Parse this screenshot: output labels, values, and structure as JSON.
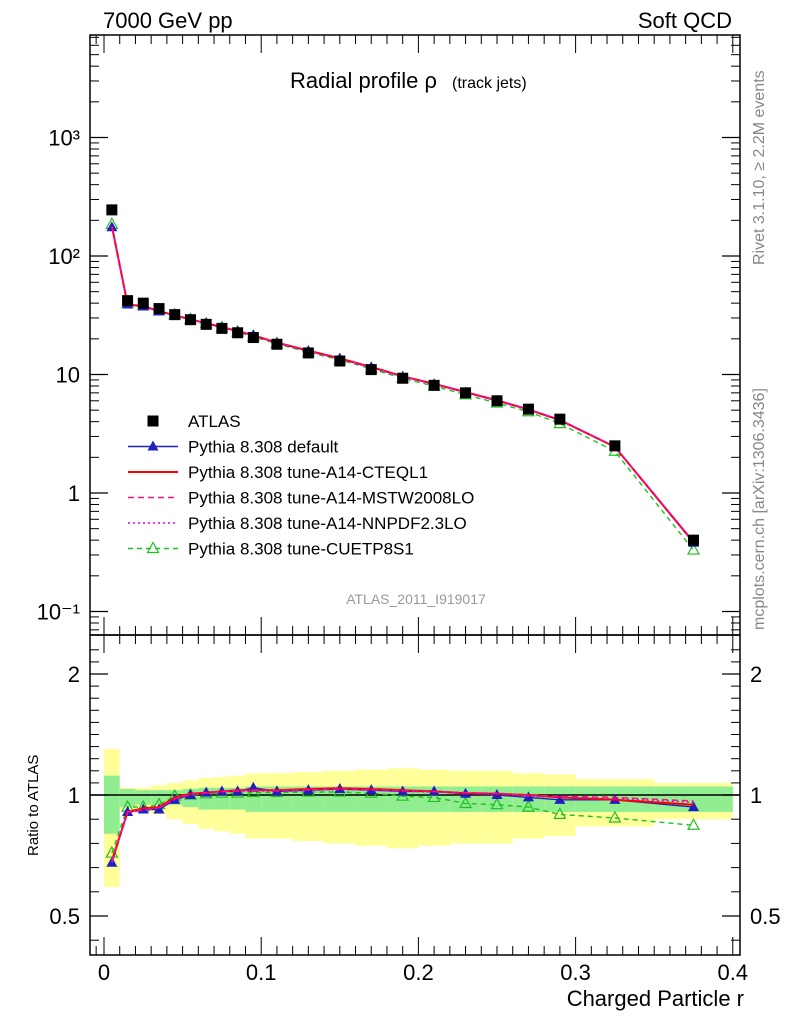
{
  "header": {
    "left": "7000 GeV pp",
    "right": "Soft QCD"
  },
  "side": {
    "rivet": "Rivet 3.1.10, ≥ 2.2M events",
    "mcplots": "mcplots.cern.ch [arXiv:1306.3436]"
  },
  "chart_data": [
    {
      "type": "scatter",
      "title_main": "Radial profile ρ",
      "title_sub": "(track jets)",
      "watermark": "ATLAS_2011_I919017",
      "xlim": [
        -0.01,
        0.4
      ],
      "ylim": [
        0.07,
        9000
      ],
      "yscale": "log",
      "ytick_labels": [
        "10⁻¹",
        "1",
        "10",
        "10²",
        "10³"
      ],
      "legend_position": "middle-left",
      "x": [
        0.005,
        0.015,
        0.025,
        0.035,
        0.045,
        0.055,
        0.065,
        0.075,
        0.085,
        0.095,
        0.11,
        0.13,
        0.15,
        0.17,
        0.19,
        0.21,
        0.23,
        0.25,
        0.27,
        0.29,
        0.325,
        0.375
      ],
      "series": [
        {
          "name": "ATLAS",
          "color": "#000000",
          "marker": "square",
          "values": [
            245,
            42,
            40,
            36,
            32,
            29,
            26.5,
            24.5,
            22.5,
            20.5,
            18,
            15.2,
            13,
            11,
            9.3,
            8.1,
            7,
            6,
            5.1,
            4.2,
            2.5,
            0.4
          ]
        },
        {
          "name": "Pythia 8.308 default",
          "color": "#2020c0",
          "marker": "triangle",
          "dash": "",
          "values": [
            175,
            39,
            37.5,
            34,
            31.5,
            29,
            27,
            25,
            23.2,
            21.5,
            18.5,
            15.8,
            13.6,
            11.5,
            9.6,
            8.3,
            7.05,
            6.0,
            5.05,
            4.1,
            2.45,
            0.38
          ]
        },
        {
          "name": "Pythia 8.308 tune-A14-CTEQL1",
          "color": "#ff0000",
          "marker": "",
          "dash": "",
          "values": [
            178,
            39,
            37.8,
            34.2,
            31.6,
            29.2,
            27.1,
            25.1,
            23.3,
            21.4,
            18.6,
            15.9,
            13.7,
            11.6,
            9.65,
            8.35,
            7.1,
            6.05,
            5.08,
            4.12,
            2.45,
            0.385
          ]
        },
        {
          "name": "Pythia 8.308 tune-A14-MSTW2008LO",
          "color": "#ff1080",
          "marker": "",
          "dash": "6,4",
          "values": [
            177,
            39,
            37.6,
            34.1,
            31.5,
            29.1,
            27.0,
            25.0,
            23.2,
            21.3,
            18.5,
            15.8,
            13.6,
            11.5,
            9.6,
            8.3,
            7.08,
            6.08,
            5.1,
            4.15,
            2.47,
            0.39
          ]
        },
        {
          "name": "Pythia 8.308 tune-A14-NNPDF2.3LO",
          "color": "#e000e0",
          "marker": "",
          "dash": "2,3",
          "values": [
            176,
            38.8,
            37.5,
            34.0,
            31.4,
            29.0,
            26.9,
            24.9,
            23.1,
            21.2,
            18.4,
            15.7,
            13.5,
            11.4,
            9.55,
            8.25,
            7.05,
            6.05,
            5.08,
            4.13,
            2.46,
            0.388
          ]
        },
        {
          "name": "Pythia 8.308 tune-CUETP8S1",
          "color": "#20c020",
          "marker": "triangle-open",
          "dash": "5,4",
          "values": [
            185,
            40,
            38,
            34.5,
            31.8,
            29.2,
            26.8,
            24.8,
            22.8,
            20.8,
            18.2,
            15.4,
            13.3,
            11.2,
            9.25,
            8.0,
            6.75,
            5.75,
            4.85,
            3.85,
            2.25,
            0.33
          ]
        }
      ]
    },
    {
      "type": "scatter",
      "ylabel": "Ratio to ATLAS",
      "xlabel": "Charged Particle r",
      "xlim": [
        -0.01,
        0.4
      ],
      "ylim": [
        0.35,
        2.3
      ],
      "ytick_labels": [
        "0.5",
        "1",
        "2"
      ],
      "xtick_labels": [
        "0",
        "0.1",
        "0.2",
        "0.3",
        "0.4"
      ],
      "bins": [
        [
          0.0,
          0.01
        ],
        [
          0.01,
          0.02
        ],
        [
          0.02,
          0.03
        ],
        [
          0.03,
          0.04
        ],
        [
          0.04,
          0.05
        ],
        [
          0.05,
          0.06
        ],
        [
          0.06,
          0.07
        ],
        [
          0.07,
          0.08
        ],
        [
          0.08,
          0.09
        ],
        [
          0.09,
          0.1
        ],
        [
          0.1,
          0.12
        ],
        [
          0.12,
          0.14
        ],
        [
          0.14,
          0.16
        ],
        [
          0.16,
          0.18
        ],
        [
          0.18,
          0.2
        ],
        [
          0.2,
          0.22
        ],
        [
          0.22,
          0.24
        ],
        [
          0.24,
          0.26
        ],
        [
          0.26,
          0.28
        ],
        [
          0.28,
          0.3
        ],
        [
          0.3,
          0.35
        ],
        [
          0.35,
          0.4
        ]
      ],
      "band_stat": [
        0.16,
        0.05,
        0.04,
        0.04,
        0.04,
        0.05,
        0.06,
        0.06,
        0.06,
        0.07,
        0.07,
        0.07,
        0.07,
        0.07,
        0.07,
        0.07,
        0.07,
        0.07,
        0.07,
        0.07,
        0.07,
        0.07
      ],
      "band_total": [
        0.38,
        0.06,
        0.06,
        0.08,
        0.1,
        0.12,
        0.14,
        0.15,
        0.16,
        0.18,
        0.18,
        0.19,
        0.2,
        0.21,
        0.22,
        0.21,
        0.2,
        0.2,
        0.18,
        0.17,
        0.13,
        0.1
      ],
      "band_colors": {
        "stat": "#90ee90",
        "total": "#ffff99"
      },
      "ratios": [
        {
          "name": "Pythia 8.308 default",
          "values": [
            0.72,
            0.93,
            0.94,
            0.94,
            0.98,
            1.0,
            1.02,
            1.03,
            1.03,
            1.06,
            1.03,
            1.04,
            1.05,
            1.04,
            1.03,
            1.03,
            1.01,
            1.0,
            0.99,
            0.98,
            0.98,
            0.95
          ]
        },
        {
          "name": "Pythia 8.308 tune-A14-CTEQL1",
          "values": [
            0.73,
            0.93,
            0.945,
            0.95,
            0.99,
            1.01,
            1.02,
            1.03,
            1.04,
            1.04,
            1.04,
            1.05,
            1.055,
            1.05,
            1.04,
            1.03,
            1.015,
            1.01,
            1.0,
            0.99,
            0.98,
            0.96
          ]
        },
        {
          "name": "Pythia 8.308 tune-A14-MSTW2008LO",
          "values": [
            0.725,
            0.93,
            0.94,
            0.947,
            0.985,
            1.005,
            1.02,
            1.03,
            1.035,
            1.04,
            1.035,
            1.045,
            1.05,
            1.045,
            1.035,
            1.03,
            1.02,
            1.015,
            1.0,
            0.995,
            0.99,
            0.975
          ]
        },
        {
          "name": "Pythia 8.308 tune-A14-NNPDF2.3LO",
          "values": [
            0.72,
            0.925,
            0.937,
            0.945,
            0.98,
            1.0,
            1.015,
            1.025,
            1.03,
            1.035,
            1.03,
            1.04,
            1.045,
            1.04,
            1.03,
            1.025,
            1.015,
            1.01,
            0.995,
            0.99,
            0.985,
            0.97
          ]
        },
        {
          "name": "Pythia 8.308 tune-CUETP8S1",
          "values": [
            0.76,
            0.95,
            0.95,
            0.96,
            0.995,
            1.0,
            1.01,
            1.015,
            1.015,
            1.02,
            1.02,
            1.025,
            1.025,
            1.015,
            0.995,
            0.99,
            0.965,
            0.96,
            0.95,
            0.92,
            0.905,
            0.875
          ]
        }
      ]
    }
  ]
}
